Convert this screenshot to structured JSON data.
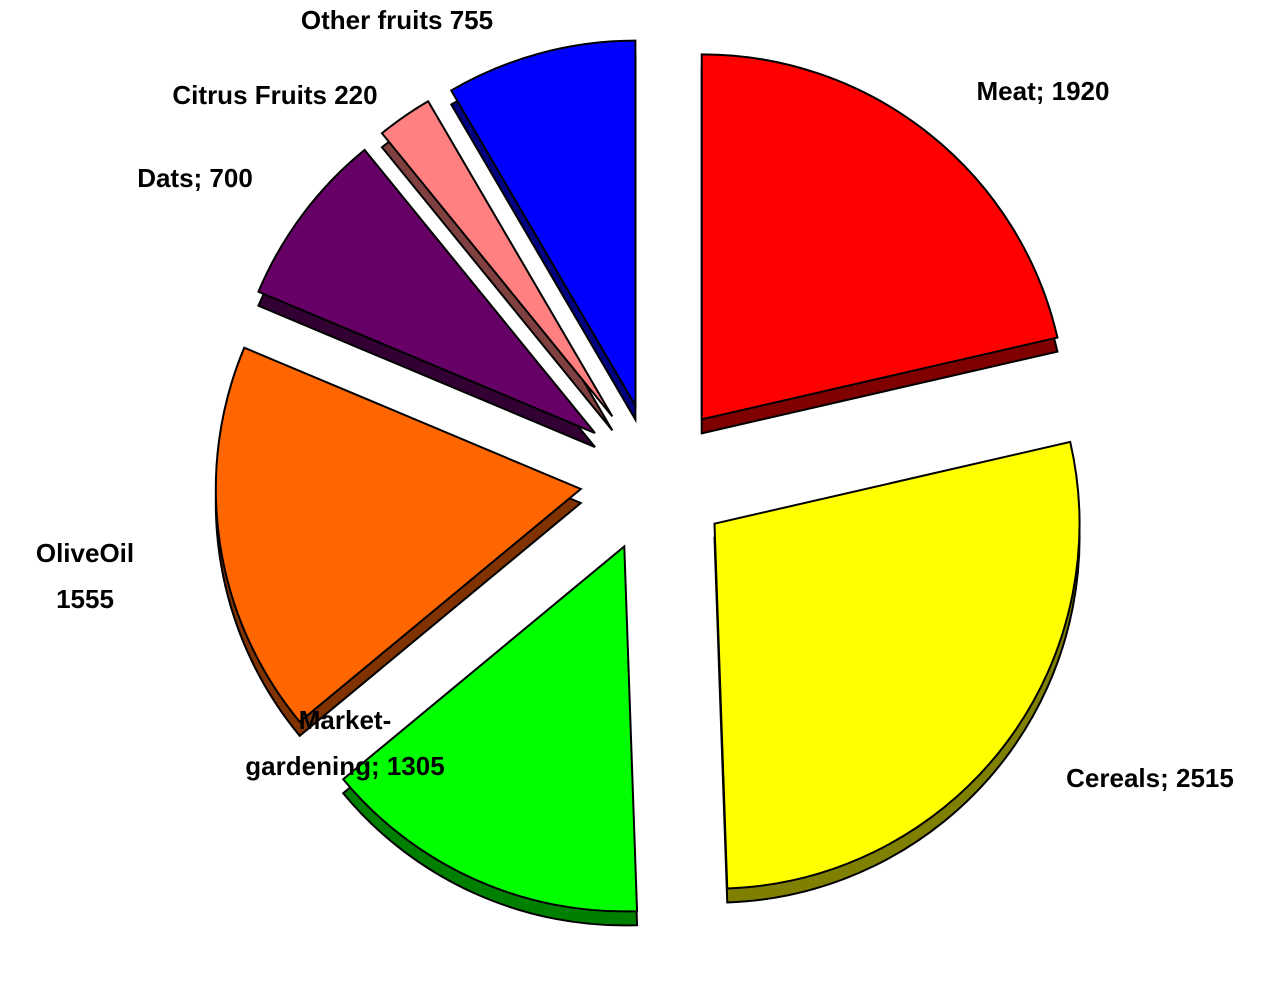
{
  "chart_data": {
    "type": "pie",
    "values": [
      1920,
      2515,
      1305,
      1555,
      700,
      220,
      755
    ],
    "value_labels": [
      "Meat; 1920",
      "Cereals; 2515",
      "Market-\ngardening; 1305",
      "OliveOil\n1555",
      "Dats; 700",
      "Citrus Fruits 220",
      "Other fruits 755"
    ],
    "colors": [
      "#ff0000",
      "#ffff00",
      "#00ff00",
      "#ff6600",
      "#660066",
      "#ff8080",
      "#0000ff"
    ]
  }
}
